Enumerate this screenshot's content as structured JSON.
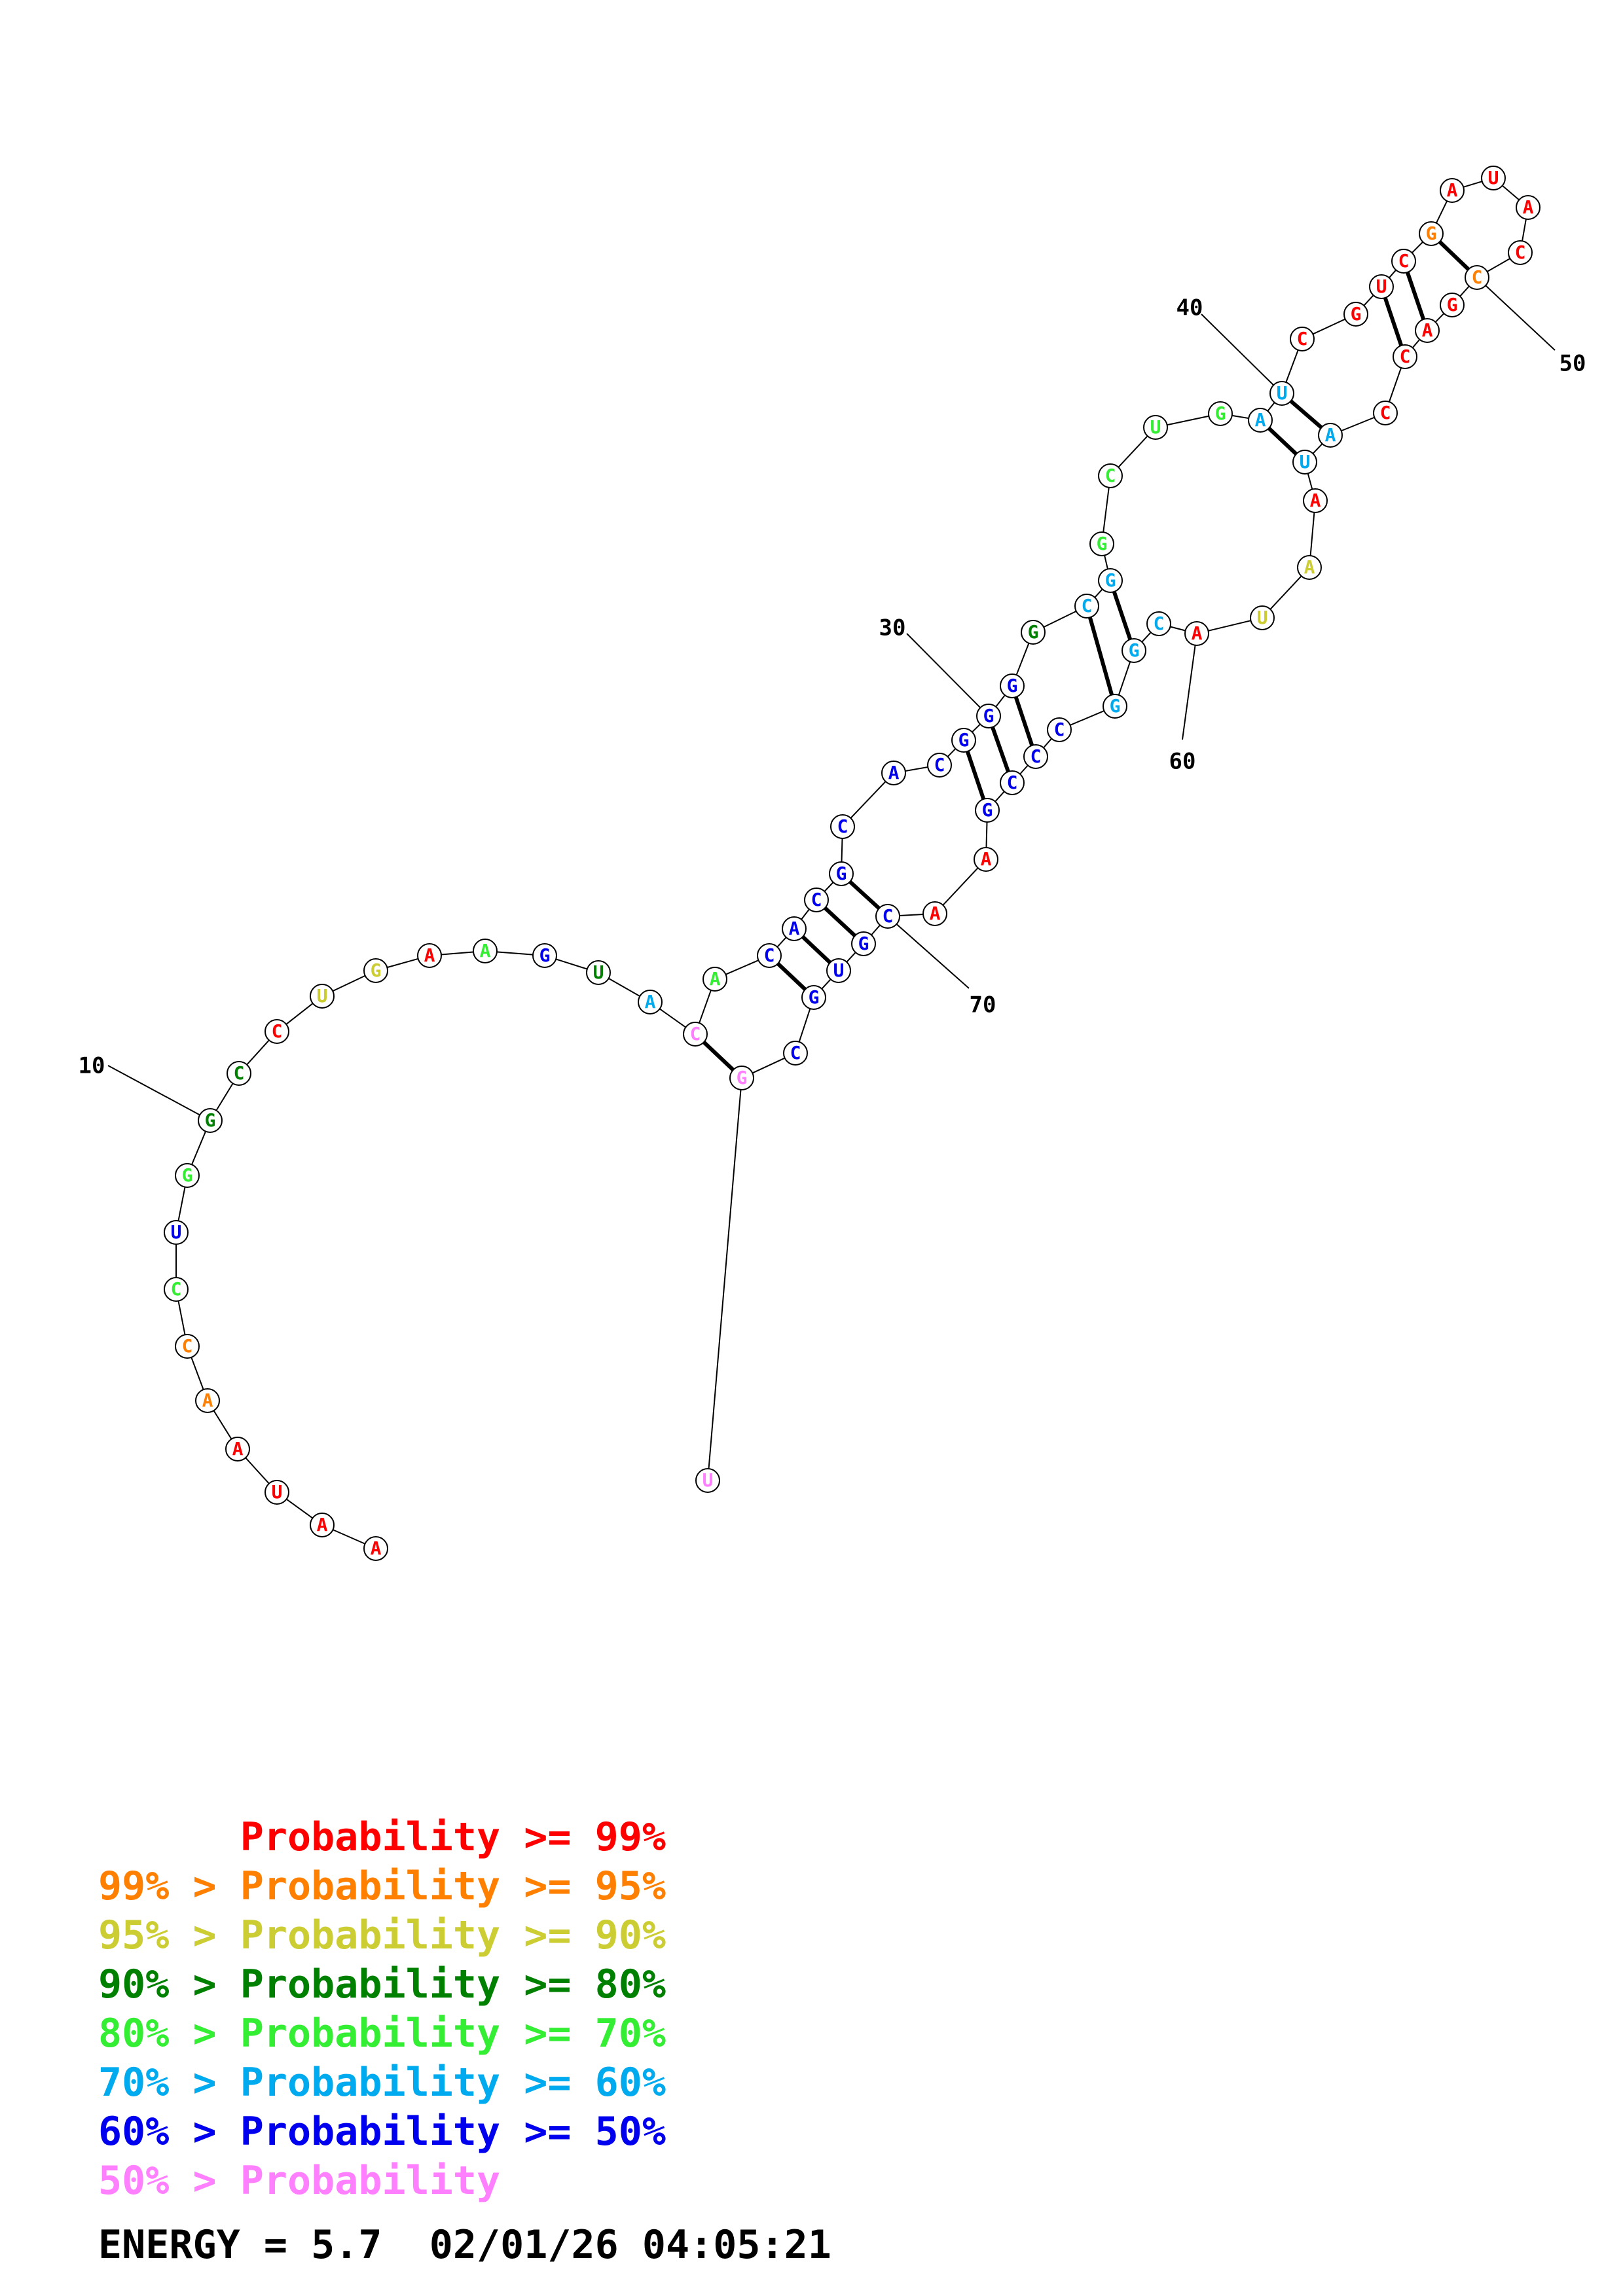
{
  "palette": {
    "red": "#ff0000",
    "orange": "#ff8000",
    "yellow": "#cccc33",
    "darkgreen": "#008000",
    "green": "#33ee33",
    "cyan": "#00aaee",
    "blue": "#0000ee",
    "pink": "#ff80ff"
  },
  "nucleotides": [
    {
      "i": 1,
      "b": "A",
      "c": "red"
    },
    {
      "i": 2,
      "b": "A",
      "c": "red"
    },
    {
      "i": 3,
      "b": "U",
      "c": "red"
    },
    {
      "i": 4,
      "b": "A",
      "c": "red"
    },
    {
      "i": 5,
      "b": "A",
      "c": "orange"
    },
    {
      "i": 6,
      "b": "C",
      "c": "orange"
    },
    {
      "i": 7,
      "b": "C",
      "c": "green"
    },
    {
      "i": 8,
      "b": "U",
      "c": "blue"
    },
    {
      "i": 9,
      "b": "G",
      "c": "green"
    },
    {
      "i": 10,
      "b": "G",
      "c": "darkgreen"
    },
    {
      "i": 11,
      "b": "C",
      "c": "darkgreen"
    },
    {
      "i": 12,
      "b": "C",
      "c": "red"
    },
    {
      "i": 13,
      "b": "U",
      "c": "yellow"
    },
    {
      "i": 14,
      "b": "G",
      "c": "yellow"
    },
    {
      "i": 15,
      "b": "A",
      "c": "red"
    },
    {
      "i": 16,
      "b": "A",
      "c": "green"
    },
    {
      "i": 17,
      "b": "G",
      "c": "blue"
    },
    {
      "i": 18,
      "b": "U",
      "c": "darkgreen"
    },
    {
      "i": 19,
      "b": "A",
      "c": "cyan"
    },
    {
      "i": 20,
      "b": "C",
      "c": "pink"
    },
    {
      "i": 21,
      "b": "A",
      "c": "green"
    },
    {
      "i": 22,
      "b": "C",
      "c": "blue"
    },
    {
      "i": 23,
      "b": "A",
      "c": "blue"
    },
    {
      "i": 24,
      "b": "C",
      "c": "blue"
    },
    {
      "i": 25,
      "b": "G",
      "c": "blue"
    },
    {
      "i": 26,
      "b": "C",
      "c": "blue"
    },
    {
      "i": 27,
      "b": "A",
      "c": "blue"
    },
    {
      "i": 28,
      "b": "C",
      "c": "blue"
    },
    {
      "i": 29,
      "b": "G",
      "c": "blue"
    },
    {
      "i": 30,
      "b": "G",
      "c": "blue"
    },
    {
      "i": 31,
      "b": "G",
      "c": "blue"
    },
    {
      "i": 32,
      "b": "G",
      "c": "darkgreen"
    },
    {
      "i": 33,
      "b": "C",
      "c": "cyan"
    },
    {
      "i": 34,
      "b": "G",
      "c": "cyan"
    },
    {
      "i": 35,
      "b": "G",
      "c": "green"
    },
    {
      "i": 36,
      "b": "C",
      "c": "green"
    },
    {
      "i": 37,
      "b": "U",
      "c": "green"
    },
    {
      "i": 38,
      "b": "G",
      "c": "green"
    },
    {
      "i": 39,
      "b": "A",
      "c": "cyan"
    },
    {
      "i": 40,
      "b": "U",
      "c": "cyan"
    },
    {
      "i": 41,
      "b": "C",
      "c": "red"
    },
    {
      "i": 42,
      "b": "G",
      "c": "red"
    },
    {
      "i": 43,
      "b": "U",
      "c": "red"
    },
    {
      "i": 44,
      "b": "C",
      "c": "red"
    },
    {
      "i": 45,
      "b": "G",
      "c": "orange"
    },
    {
      "i": 46,
      "b": "A",
      "c": "red"
    },
    {
      "i": 47,
      "b": "U",
      "c": "red"
    },
    {
      "i": 48,
      "b": "A",
      "c": "red"
    },
    {
      "i": 49,
      "b": "C",
      "c": "red"
    },
    {
      "i": 50,
      "b": "C",
      "c": "orange"
    },
    {
      "i": 51,
      "b": "G",
      "c": "red"
    },
    {
      "i": 52,
      "b": "A",
      "c": "red"
    },
    {
      "i": 53,
      "b": "C",
      "c": "red"
    },
    {
      "i": 54,
      "b": "C",
      "c": "red"
    },
    {
      "i": 55,
      "b": "A",
      "c": "cyan"
    },
    {
      "i": 56,
      "b": "U",
      "c": "cyan"
    },
    {
      "i": 57,
      "b": "A",
      "c": "red"
    },
    {
      "i": 58,
      "b": "A",
      "c": "yellow"
    },
    {
      "i": 59,
      "b": "U",
      "c": "yellow"
    },
    {
      "i": 60,
      "b": "A",
      "c": "red"
    },
    {
      "i": 61,
      "b": "C",
      "c": "cyan"
    },
    {
      "i": 62,
      "b": "G",
      "c": "cyan"
    },
    {
      "i": 63,
      "b": "G",
      "c": "cyan"
    },
    {
      "i": 64,
      "b": "C",
      "c": "blue"
    },
    {
      "i": 65,
      "b": "C",
      "c": "blue"
    },
    {
      "i": 66,
      "b": "C",
      "c": "blue"
    },
    {
      "i": 67,
      "b": "G",
      "c": "blue"
    },
    {
      "i": 68,
      "b": "A",
      "c": "red"
    },
    {
      "i": 69,
      "b": "A",
      "c": "red"
    },
    {
      "i": 70,
      "b": "C",
      "c": "blue"
    },
    {
      "i": 71,
      "b": "G",
      "c": "blue"
    },
    {
      "i": 72,
      "b": "U",
      "c": "blue"
    },
    {
      "i": 73,
      "b": "G",
      "c": "blue"
    },
    {
      "i": 74,
      "b": "C",
      "c": "blue"
    },
    {
      "i": 75,
      "b": "G",
      "c": "pink"
    },
    {
      "i": 76,
      "b": "U",
      "c": "pink"
    }
  ],
  "pairs": [
    [
      20,
      75
    ],
    [
      22,
      73
    ],
    [
      23,
      72
    ],
    [
      24,
      71
    ],
    [
      25,
      70
    ],
    [
      29,
      67
    ],
    [
      30,
      66
    ],
    [
      31,
      65
    ],
    [
      33,
      63
    ],
    [
      34,
      62
    ],
    [
      39,
      56
    ],
    [
      40,
      55
    ],
    [
      43,
      53
    ],
    [
      44,
      52
    ],
    [
      45,
      50
    ]
  ],
  "position_labels": [
    {
      "text": "10",
      "nt": 10
    },
    {
      "text": "30",
      "nt": 30
    },
    {
      "text": "40",
      "nt": 40
    },
    {
      "text": "50",
      "nt": 50
    },
    {
      "text": "60",
      "nt": 60
    },
    {
      "text": "70",
      "nt": 70
    }
  ],
  "legend": [
    {
      "prefix": "",
      "label": "Probability >= 99%",
      "color": "red"
    },
    {
      "prefix": "99% > ",
      "label": "Probability >= 95%",
      "color": "orange"
    },
    {
      "prefix": "95% > ",
      "label": "Probability >= 90%",
      "color": "yellow"
    },
    {
      "prefix": "90% > ",
      "label": "Probability >= 80%",
      "color": "darkgreen"
    },
    {
      "prefix": "80% > ",
      "label": "Probability >= 70%",
      "color": "green"
    },
    {
      "prefix": "70% > ",
      "label": "Probability >= 60%",
      "color": "cyan"
    },
    {
      "prefix": "60% > ",
      "label": "Probability >= 50%",
      "color": "blue"
    },
    {
      "prefix": "50% > ",
      "label": "Probability",
      "color": "pink"
    }
  ],
  "energy": {
    "text": "ENERGY = 5.7  02/01/26 04:05:21"
  }
}
